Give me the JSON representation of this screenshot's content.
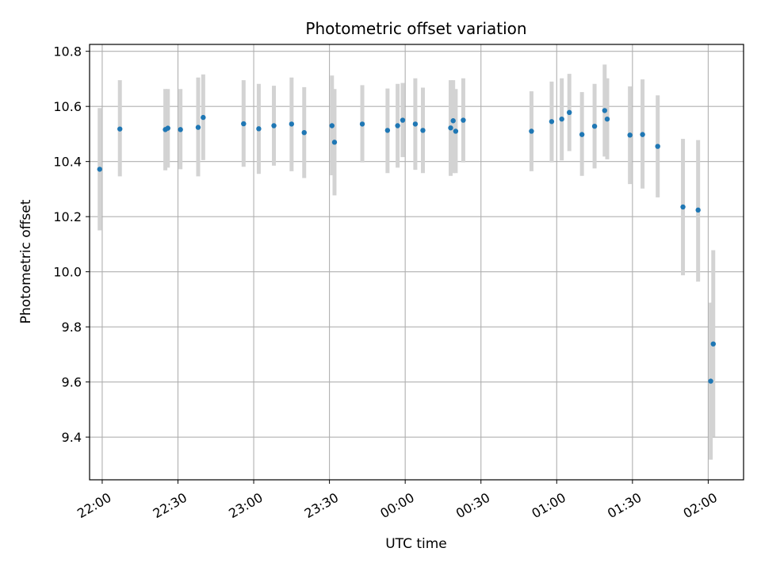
{
  "chart_data": {
    "type": "scatter",
    "title": "Photometric offset variation",
    "xlabel": "UTC time",
    "ylabel": "Photometric offset",
    "x_ticks": [
      "22:00",
      "22:30",
      "23:00",
      "23:30",
      "00:00",
      "00:30",
      "01:00",
      "01:30",
      "02:00"
    ],
    "y_ticks": [
      "9.4",
      "9.6",
      "9.8",
      "10.0",
      "10.2",
      "10.4",
      "10.6",
      "10.8"
    ],
    "xlim": [
      "21:55",
      "02:14"
    ],
    "ylim": [
      9.245,
      10.825
    ],
    "grid": true,
    "colors": {
      "marker": "#1f77b4",
      "errorbar": "#d3d3d3",
      "grid": "#b0b0b0"
    },
    "points": [
      {
        "x": "21:59",
        "y": 10.372,
        "low": 10.15,
        "high": 10.594
      },
      {
        "x": "22:07",
        "y": 10.518,
        "low": 10.346,
        "high": 10.695
      },
      {
        "x": "22:25",
        "y": 10.516,
        "low": 10.368,
        "high": 10.663
      },
      {
        "x": "22:26",
        "y": 10.521,
        "low": 10.378,
        "high": 10.663
      },
      {
        "x": "22:31",
        "y": 10.516,
        "low": 10.372,
        "high": 10.663
      },
      {
        "x": "22:38",
        "y": 10.524,
        "low": 10.346,
        "high": 10.705
      },
      {
        "x": "22:40",
        "y": 10.56,
        "low": 10.405,
        "high": 10.716
      },
      {
        "x": "22:56",
        "y": 10.537,
        "low": 10.381,
        "high": 10.695
      },
      {
        "x": "23:02",
        "y": 10.519,
        "low": 10.355,
        "high": 10.682
      },
      {
        "x": "23:08",
        "y": 10.53,
        "low": 10.385,
        "high": 10.675
      },
      {
        "x": "23:15",
        "y": 10.536,
        "low": 10.365,
        "high": 10.705
      },
      {
        "x": "23:20",
        "y": 10.505,
        "low": 10.34,
        "high": 10.67
      },
      {
        "x": "23:31",
        "y": 10.53,
        "low": 10.35,
        "high": 10.712
      },
      {
        "x": "23:32",
        "y": 10.47,
        "low": 10.277,
        "high": 10.663
      },
      {
        "x": "23:43",
        "y": 10.536,
        "low": 10.397,
        "high": 10.677
      },
      {
        "x": "23:53",
        "y": 10.513,
        "low": 10.358,
        "high": 10.665
      },
      {
        "x": "23:57",
        "y": 10.53,
        "low": 10.378,
        "high": 10.682
      },
      {
        "x": "23:59",
        "y": 10.55,
        "low": 10.416,
        "high": 10.685
      },
      {
        "x": "00:04",
        "y": 10.536,
        "low": 10.37,
        "high": 10.702
      },
      {
        "x": "00:07",
        "y": 10.513,
        "low": 10.358,
        "high": 10.668
      },
      {
        "x": "00:18",
        "y": 10.522,
        "low": 10.348,
        "high": 10.695
      },
      {
        "x": "00:19",
        "y": 10.548,
        "low": 10.358,
        "high": 10.695
      },
      {
        "x": "00:20",
        "y": 10.51,
        "low": 10.358,
        "high": 10.663
      },
      {
        "x": "00:23",
        "y": 10.55,
        "low": 10.397,
        "high": 10.702
      },
      {
        "x": "00:50",
        "y": 10.51,
        "low": 10.365,
        "high": 10.655
      },
      {
        "x": "00:58",
        "y": 10.545,
        "low": 10.397,
        "high": 10.69
      },
      {
        "x": "01:02",
        "y": 10.554,
        "low": 10.404,
        "high": 10.702
      },
      {
        "x": "01:05",
        "y": 10.578,
        "low": 10.438,
        "high": 10.718
      },
      {
        "x": "01:10",
        "y": 10.498,
        "low": 10.348,
        "high": 10.652
      },
      {
        "x": "01:15",
        "y": 10.528,
        "low": 10.375,
        "high": 10.682
      },
      {
        "x": "01:19",
        "y": 10.585,
        "low": 10.418,
        "high": 10.752
      },
      {
        "x": "01:20",
        "y": 10.554,
        "low": 10.408,
        "high": 10.702
      },
      {
        "x": "01:29",
        "y": 10.496,
        "low": 10.318,
        "high": 10.673
      },
      {
        "x": "01:34",
        "y": 10.498,
        "low": 10.302,
        "high": 10.698
      },
      {
        "x": "01:40",
        "y": 10.455,
        "low": 10.27,
        "high": 10.64
      },
      {
        "x": "01:50",
        "y": 10.235,
        "low": 9.987,
        "high": 10.482
      },
      {
        "x": "01:56",
        "y": 10.224,
        "low": 9.964,
        "high": 10.478
      },
      {
        "x": "02:01",
        "y": 9.603,
        "low": 9.318,
        "high": 9.888
      },
      {
        "x": "02:02",
        "y": 9.738,
        "low": 9.402,
        "high": 10.078
      }
    ]
  }
}
